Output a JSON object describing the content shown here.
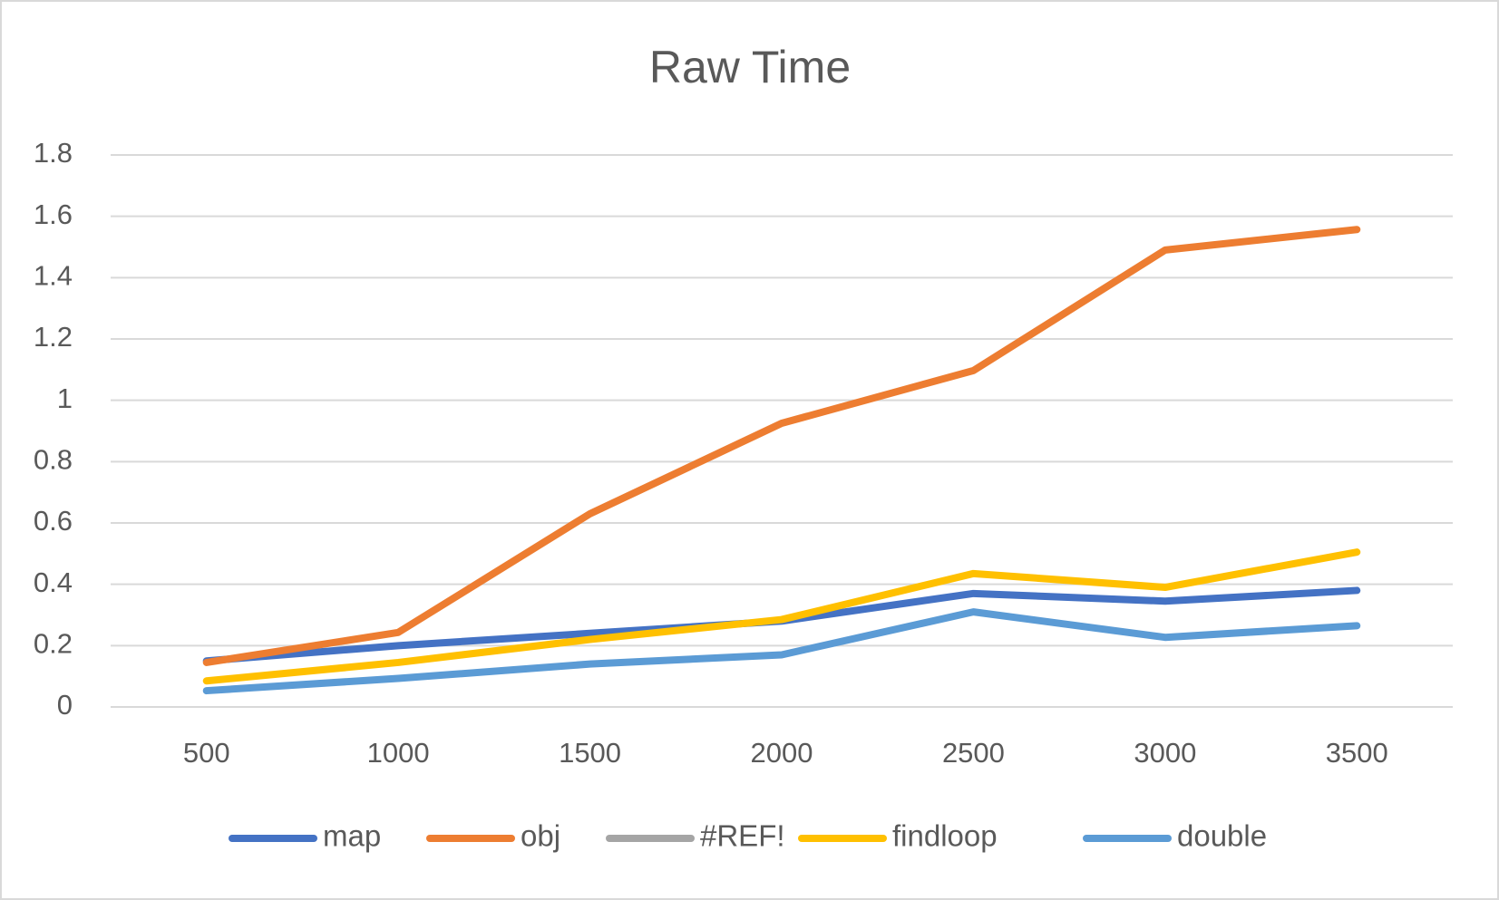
{
  "chart_data": {
    "type": "line",
    "title": "Raw Time",
    "categories": [
      "500",
      "1000",
      "1500",
      "2000",
      "2500",
      "3000",
      "3500"
    ],
    "series": [
      {
        "name": "map",
        "color": "#4472c4",
        "values": [
          0.15,
          0.2,
          0.24,
          0.28,
          0.37,
          0.345,
          0.38
        ]
      },
      {
        "name": "obj",
        "color": "#ed7d31",
        "values": [
          0.145,
          0.243,
          0.63,
          0.925,
          1.097,
          1.49,
          1.557
        ]
      },
      {
        "name": "#REF!",
        "color": "#a5a5a5",
        "values": [
          null,
          null,
          null,
          null,
          null,
          null,
          null
        ]
      },
      {
        "name": "findloop",
        "color": "#ffc000",
        "values": [
          0.085,
          0.145,
          0.22,
          0.285,
          0.435,
          0.39,
          0.505
        ]
      },
      {
        "name": "double",
        "color": "#5b9bd5",
        "values": [
          0.053,
          0.093,
          0.14,
          0.17,
          0.31,
          0.227,
          0.265
        ]
      }
    ],
    "ylim": [
      0,
      1.8
    ],
    "yticks": [
      0,
      0.2,
      0.4,
      0.6,
      0.8,
      1,
      1.2,
      1.4,
      1.6,
      1.8
    ],
    "grid": true,
    "legend": "bottom"
  }
}
